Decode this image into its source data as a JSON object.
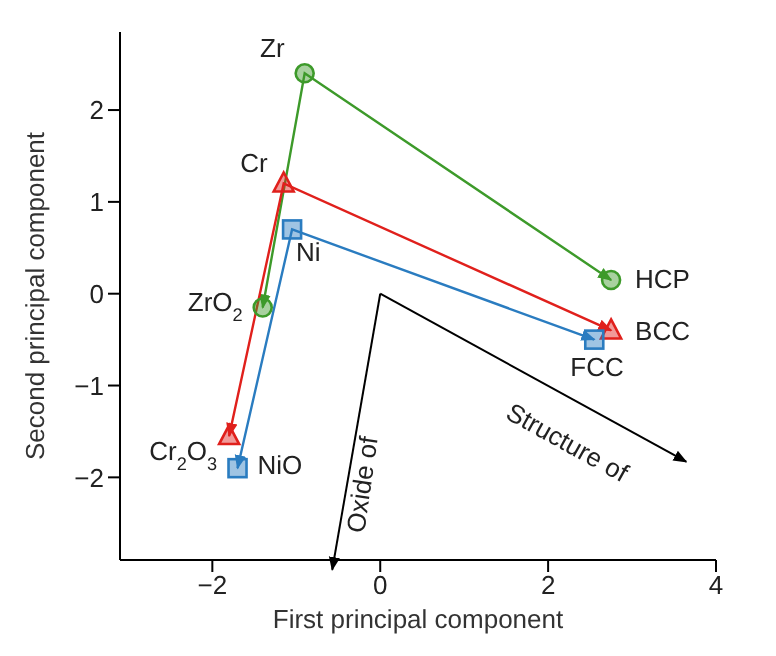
{
  "chart_data": {
    "type": "line",
    "xlabel": "First principal component",
    "ylabel": "Second principal component",
    "xlim": [
      -3.1,
      4
    ],
    "xticks": [
      -2,
      0,
      2,
      4
    ],
    "ylim": [
      -2.9,
      2.85
    ],
    "yticks": [
      -2,
      -1,
      0,
      1,
      2
    ],
    "grid": false,
    "series": [
      {
        "color": "#3d9a2a",
        "marker": "circle",
        "x": [
          -1.4,
          -0.9,
          2.75
        ],
        "values": [
          -0.15,
          2.4,
          0.15
        ]
      },
      {
        "color": "#e0201c",
        "marker": "triangle",
        "x": [
          -1.8,
          -1.15,
          2.75
        ],
        "values": [
          -1.55,
          1.2,
          -0.4
        ]
      },
      {
        "color": "#2a7cc0",
        "marker": "square",
        "x": [
          -1.7,
          -1.05,
          2.55
        ],
        "values": [
          -1.9,
          0.7,
          -0.5
        ]
      }
    ],
    "annotations": [
      {
        "text": "Zr",
        "x": -0.9,
        "y": 2.4
      },
      {
        "text": "HCP",
        "x": 2.75,
        "y": 0.15
      },
      {
        "text": "ZrO$_{2}$",
        "x": -1.4,
        "y": -0.15
      },
      {
        "text": "Cr",
        "x": -1.15,
        "y": 1.2
      },
      {
        "text": "BCC",
        "x": 2.75,
        "y": -0.4
      },
      {
        "text": "Cr$_{2}$O$_{3}$",
        "x": -1.8,
        "y": -1.55
      },
      {
        "text": "Ni",
        "x": -1.05,
        "y": 0.7
      },
      {
        "text": "FCC",
        "x": 2.55,
        "y": -0.5
      },
      {
        "text": "NiO",
        "x": -1.7,
        "y": -1.9
      },
      "Oxide of",
      "Structure of"
    ]
  }
}
